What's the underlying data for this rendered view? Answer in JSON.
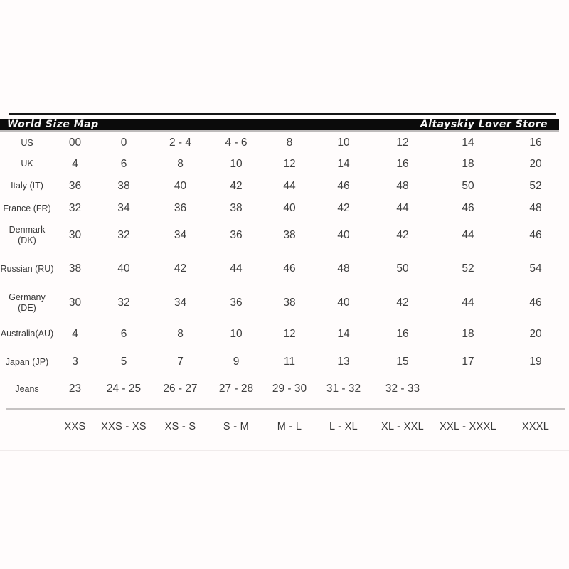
{
  "header": {
    "left_title": "World Size Map",
    "right_title": "Altayskiy Lover Store"
  },
  "colors": {
    "bar_background": "#0b0b0b",
    "bar_text": "#f7f7f7",
    "table_text": "#3d3d3d",
    "separator_line": "#c6c3c3",
    "page_background": "#fffcfc"
  },
  "chart_data": {
    "type": "table",
    "title": "World Size Map",
    "subtitle": "Altayskiy Lover Store",
    "layout_hint": "size conversion grid; region label column on left, 9 size columns; footer row of international size names",
    "rows": [
      {
        "label": "US",
        "values": [
          "00",
          "0",
          "2 - 4",
          "4 - 6",
          "8",
          "10",
          "12",
          "14",
          "16"
        ]
      },
      {
        "label": "UK",
        "values": [
          "4",
          "6",
          "8",
          "10",
          "12",
          "14",
          "16",
          "18",
          "20"
        ]
      },
      {
        "label": "Italy (IT)",
        "values": [
          "36",
          "38",
          "40",
          "42",
          "44",
          "46",
          "48",
          "50",
          "52"
        ]
      },
      {
        "label": "France (FR)",
        "values": [
          "32",
          "34",
          "36",
          "38",
          "40",
          "42",
          "44",
          "46",
          "48"
        ]
      },
      {
        "label": "Denmark\n(DK)",
        "values": [
          "30",
          "32",
          "34",
          "36",
          "38",
          "40",
          "42",
          "44",
          "46"
        ]
      },
      {
        "label": "Russian (RU)",
        "values": [
          "38",
          "40",
          "42",
          "44",
          "46",
          "48",
          "50",
          "52",
          "54"
        ]
      },
      {
        "label": "Germany\n(DE)",
        "values": [
          "30",
          "32",
          "34",
          "36",
          "38",
          "40",
          "42",
          "44",
          "46"
        ]
      },
      {
        "label": "Australia(AU)",
        "values": [
          "4",
          "6",
          "8",
          "10",
          "12",
          "14",
          "16",
          "18",
          "20"
        ]
      },
      {
        "label": "Japan (JP)",
        "values": [
          "3",
          "5",
          "7",
          "9",
          "11",
          "13",
          "15",
          "17",
          "19"
        ]
      },
      {
        "label": "Jeans",
        "values": [
          "23",
          "24 - 25",
          "26 - 27",
          "27 - 28",
          "29 - 30",
          "31 - 32",
          "32 - 33",
          "",
          ""
        ]
      }
    ],
    "footer_sizes": [
      "XXS",
      "XXS - XS",
      "XS - S",
      "S - M",
      "M - L",
      "L - XL",
      "XL - XXL",
      "XXL - XXXL",
      "XXXL"
    ]
  }
}
